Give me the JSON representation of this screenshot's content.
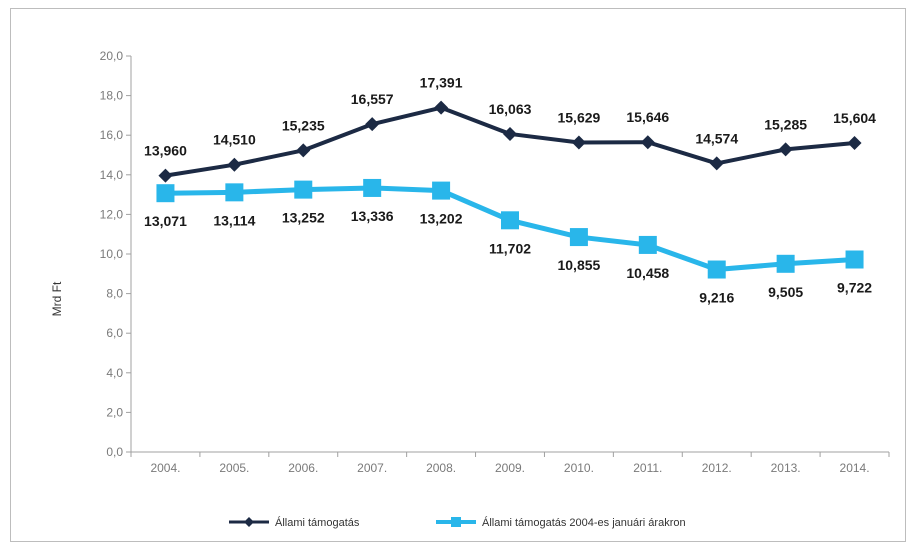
{
  "chart_data": {
    "type": "line",
    "categories": [
      "2004.",
      "2005.",
      "2006.",
      "2007.",
      "2008.",
      "2009.",
      "2010.",
      "2011.",
      "2012.",
      "2013.",
      "2014."
    ],
    "ylabel": "Mrd Ft",
    "ylim": [
      0,
      20
    ],
    "yticks": [
      "0,0",
      "2,0",
      "4,0",
      "6,0",
      "8,0",
      "10,0",
      "12,0",
      "14,0",
      "16,0",
      "18,0",
      "20,0"
    ],
    "legend_position": "bottom",
    "grid": false,
    "series": [
      {
        "name": "Állami támogatás",
        "color": "#1c2a44",
        "marker": "diamond",
        "values": [
          13.96,
          14.51,
          15.235,
          16.557,
          17.391,
          16.063,
          15.629,
          15.646,
          14.574,
          15.285,
          15.604
        ],
        "labels": [
          "13,960",
          "14,510",
          "15,235",
          "16,557",
          "17,391",
          "16,063",
          "15,629",
          "15,646",
          "14,574",
          "15,285",
          "15,604"
        ]
      },
      {
        "name": "Állami támogatás 2004-es januári árakron",
        "color": "#29b6ea",
        "marker": "square",
        "values": [
          13.071,
          13.114,
          13.252,
          13.336,
          13.202,
          11.702,
          10.855,
          10.458,
          9.216,
          9.505,
          9.722
        ],
        "labels": [
          "13,071",
          "13,114",
          "13,252",
          "13,336",
          "13,202",
          "11,702",
          "10,855",
          "10,458",
          "9,216",
          "9,505",
          "9,722"
        ]
      }
    ]
  }
}
